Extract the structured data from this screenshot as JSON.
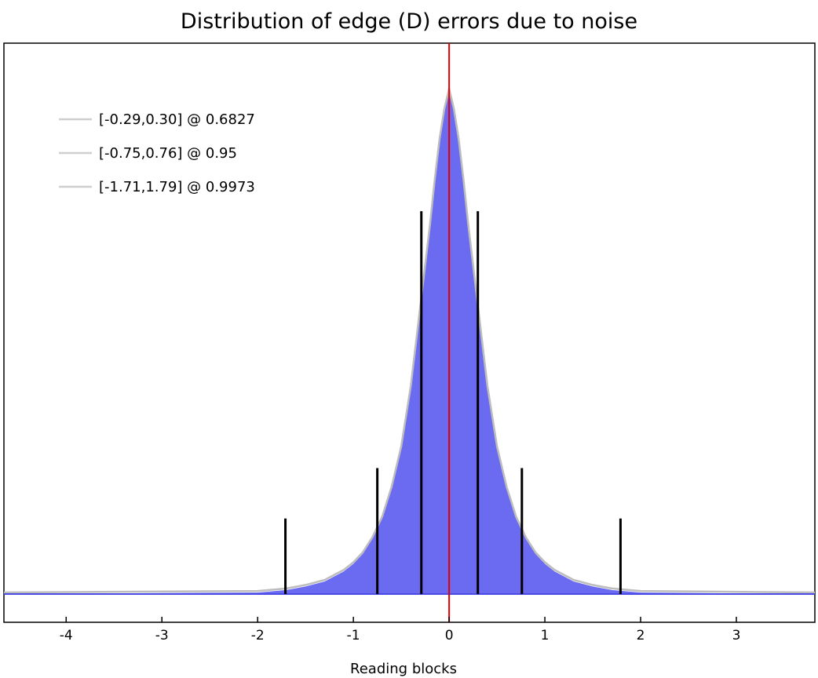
{
  "chart_data": {
    "type": "area",
    "title": "Distribution of edge (D) errors due to noise",
    "xlabel": "Reading blocks",
    "ylabel": "",
    "xlim": [
      -4.65,
      3.82
    ],
    "x_ticks": [
      -4,
      -3,
      -2,
      -1,
      0,
      1,
      2,
      3
    ],
    "grid": false,
    "legend_position": "top-left",
    "legend": [
      {
        "label": "[-0.29,0.30] @ 0.6827",
        "low": -0.29,
        "high": 0.3,
        "coverage": 0.6827
      },
      {
        "label": "[-0.75,0.76] @ 0.95",
        "low": -0.75,
        "high": 0.76,
        "coverage": 0.95
      },
      {
        "label": "[-1.71,1.79] @ 0.9973",
        "low": -1.71,
        "high": 1.79,
        "coverage": 0.9973
      }
    ],
    "marker_heights": {
      "0.6827": 0.76,
      "0.95": 0.25,
      "0.9973": 0.15
    },
    "reference_line_x": 0,
    "distribution": {
      "x": [
        -4.65,
        -2.0,
        -1.7,
        -1.5,
        -1.3,
        -1.1,
        -1.0,
        -0.9,
        -0.8,
        -0.7,
        -0.6,
        -0.5,
        -0.4,
        -0.3,
        -0.2,
        -0.15,
        -0.1,
        -0.05,
        0.0,
        0.05,
        0.1,
        0.15,
        0.2,
        0.3,
        0.4,
        0.5,
        0.6,
        0.7,
        0.8,
        0.9,
        1.0,
        1.1,
        1.3,
        1.5,
        1.7,
        2.0,
        3.82
      ],
      "y": [
        0.0,
        0.003,
        0.008,
        0.015,
        0.025,
        0.045,
        0.06,
        0.08,
        0.11,
        0.15,
        0.21,
        0.29,
        0.41,
        0.57,
        0.73,
        0.82,
        0.9,
        0.96,
        1.0,
        0.96,
        0.9,
        0.82,
        0.73,
        0.57,
        0.41,
        0.29,
        0.21,
        0.15,
        0.11,
        0.08,
        0.06,
        0.045,
        0.025,
        0.015,
        0.008,
        0.003,
        0.0
      ]
    },
    "colors": {
      "fill": "#6b6bf2",
      "outline": "#bdbdbd",
      "baseline": "#4a4ae6",
      "reference_line": "#e00000",
      "markers": "#000000",
      "legend_line": "#cfcfcf"
    }
  }
}
